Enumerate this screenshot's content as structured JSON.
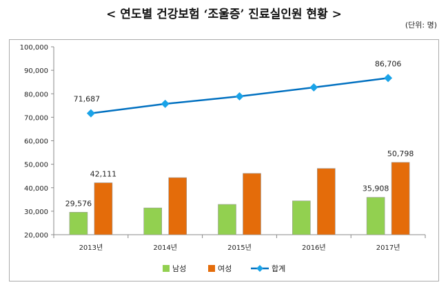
{
  "title": "< 연도별 건강보험 ‘조울증’ 진료실인원 현황 >",
  "unit": "(단위: 명)",
  "chart_data": {
    "type": "bar",
    "categories": [
      "2013년",
      "2014년",
      "2015년",
      "2016년",
      "2017년"
    ],
    "ylim": [
      20000,
      100000
    ],
    "yticks": [
      "20,000",
      "30,000",
      "40,000",
      "50,000",
      "60,000",
      "70,000",
      "80,000",
      "90,000",
      "100,000"
    ],
    "series": [
      {
        "name": "남성",
        "type": "bar",
        "color": "#92d050",
        "values": [
          29576,
          31400,
          32900,
          34400,
          35908
        ],
        "labels": [
          "29,576",
          "",
          "",
          "",
          "35,908"
        ]
      },
      {
        "name": "여성",
        "type": "bar",
        "color": "#e46c0a",
        "values": [
          42111,
          44300,
          46100,
          48200,
          50798
        ],
        "labels": [
          "42,111",
          "",
          "",
          "",
          "50,798"
        ]
      },
      {
        "name": "합계",
        "type": "line",
        "color": "#0070c0",
        "marker_color": "#1aa3e8",
        "values": [
          71687,
          75700,
          78900,
          82700,
          86706
        ],
        "labels": [
          "71,687",
          "",
          "",
          "",
          "86,706"
        ]
      }
    ],
    "grid": false,
    "legend": "bottom"
  }
}
